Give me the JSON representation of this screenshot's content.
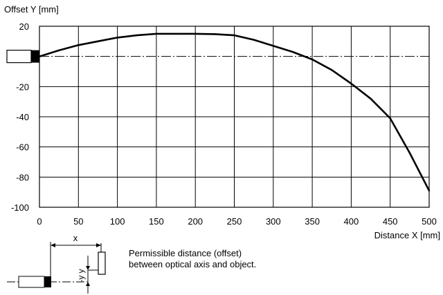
{
  "chart_data": {
    "type": "line",
    "title": "",
    "xlabel": "Distance X [mm]",
    "ylabel": "Offset Y [mm]",
    "xlim": [
      0,
      500
    ],
    "ylim": [
      -100,
      20
    ],
    "x_ticks": [
      0,
      50,
      100,
      150,
      200,
      250,
      300,
      350,
      400,
      450,
      500
    ],
    "y_ticks": [
      20,
      0,
      -20,
      -40,
      -60,
      -80,
      -100
    ],
    "grid": true,
    "reference_line": {
      "y": 0,
      "style": "dash-dot"
    },
    "series": [
      {
        "x": [
          0,
          25,
          50,
          75,
          100,
          125,
          150,
          175,
          200,
          225,
          250,
          275,
          300,
          325,
          350,
          375,
          400,
          425,
          450,
          475,
          500
        ],
        "y": [
          0,
          4,
          7.5,
          10,
          12.5,
          14,
          15,
          15,
          15,
          14.8,
          14,
          11,
          7,
          3,
          -2,
          -9,
          -18,
          -28,
          -41,
          -64,
          -89
        ]
      }
    ]
  },
  "diagram": {
    "x_label": "x",
    "y_labels": [
      "-y",
      "y"
    ],
    "note_lines": [
      "Permissible distance (offset)",
      "between optical axis and object."
    ]
  }
}
